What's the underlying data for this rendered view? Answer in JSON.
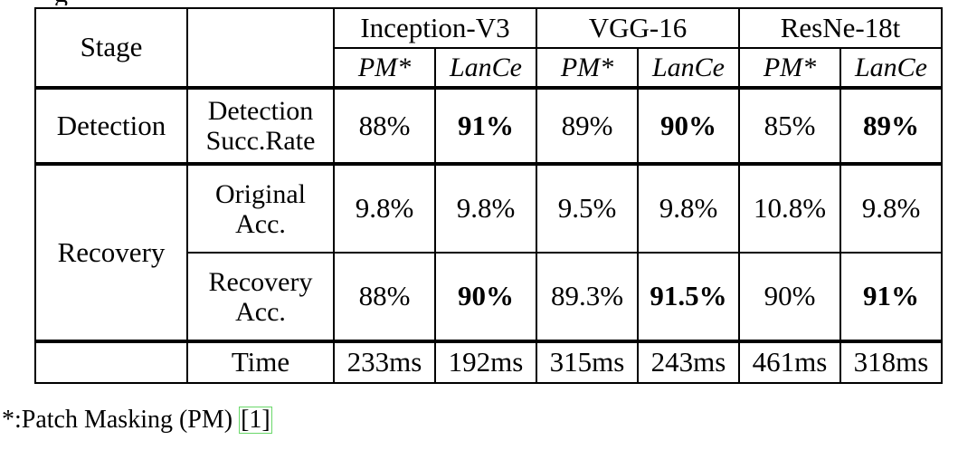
{
  "table": {
    "stage_header": "Stage",
    "models": [
      "Inception-V3",
      "VGG-16",
      "ResNe-18t"
    ],
    "methods": [
      "PM*",
      "LanCe"
    ],
    "rows": [
      {
        "stage": "Detection",
        "metric_line1": "Detection",
        "metric_line2": "Succ.Rate",
        "values": [
          "88%",
          "91%",
          "89%",
          "90%",
          "85%",
          "89%"
        ],
        "bold": [
          false,
          true,
          false,
          true,
          false,
          true
        ]
      },
      {
        "stage": "Recovery",
        "metric_line1": "Original",
        "metric_line2": "Acc.",
        "values": [
          "9.8%",
          "9.8%",
          "9.5%",
          "9.8%",
          "10.8%",
          "9.8%"
        ],
        "bold": [
          false,
          false,
          false,
          false,
          false,
          false
        ]
      },
      {
        "stage": "",
        "metric_line1": "Recovery",
        "metric_line2": "Acc.",
        "values": [
          "88%",
          "90%",
          "89.3%",
          "91.5%",
          "90%",
          "91%"
        ],
        "bold": [
          false,
          true,
          false,
          true,
          false,
          true
        ]
      },
      {
        "stage": "",
        "metric_line1": "Time",
        "metric_line2": "",
        "values": [
          "233ms",
          "192ms",
          "315ms",
          "243ms",
          "461ms",
          "318ms"
        ],
        "bold": [
          false,
          false,
          false,
          false,
          false,
          false
        ]
      }
    ]
  },
  "footnote": {
    "text": "*:Patch Masking (PM) ",
    "ref": "[1]"
  }
}
